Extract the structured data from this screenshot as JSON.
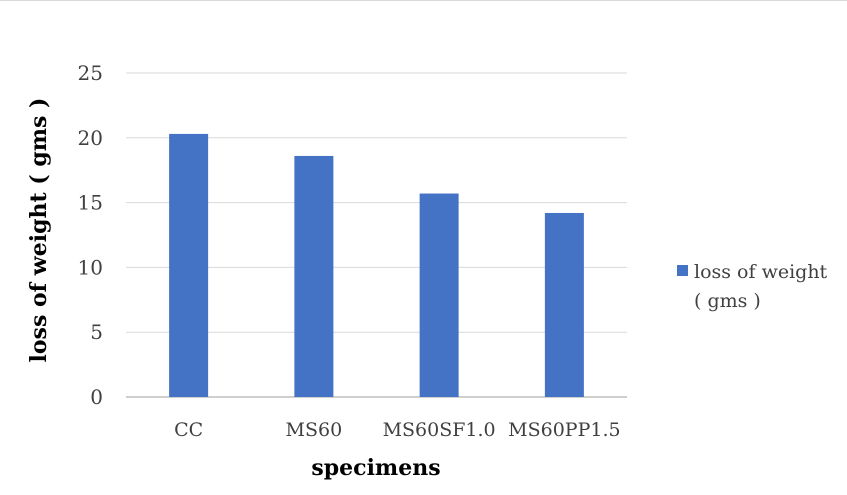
{
  "chart_data": {
    "type": "bar",
    "categories": [
      "CC",
      "MS60",
      "MS60SF1.0",
      "MS60PP1.5"
    ],
    "series": [
      {
        "name": "loss of weight ( gms )",
        "values": [
          20.3,
          18.6,
          15.7,
          14.2
        ]
      }
    ],
    "xlabel": "specimens",
    "ylabel": "loss of weight ( gms )",
    "ylim": [
      0,
      25
    ],
    "yticks": [
      0,
      5,
      10,
      15,
      20,
      25
    ],
    "grid": true,
    "legend": {
      "position": "right",
      "lines": [
        "loss of weight",
        "( gms )"
      ]
    },
    "colors": {
      "bar": "#4472c4",
      "grid": "#d9d9d9",
      "axis": "#bfbfbf"
    }
  }
}
